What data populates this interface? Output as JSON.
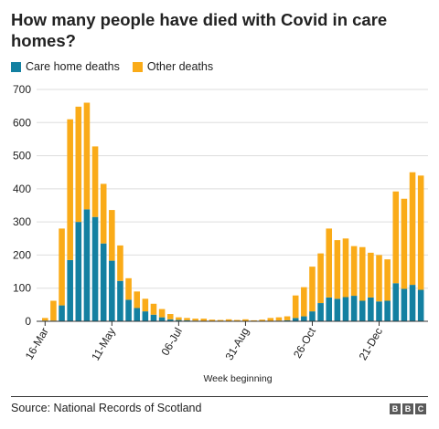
{
  "title": "How many people have died with Covid in care homes?",
  "legend": {
    "care_home_label": "Care home deaths",
    "other_label": "Other deaths"
  },
  "colors": {
    "care_home": "#1380A1",
    "other": "#FAAB18",
    "grid": "#dddddd",
    "axis": "#333333"
  },
  "source": "Source: National Records of Scotland",
  "logo": [
    "B",
    "B",
    "C"
  ],
  "chart_data": {
    "type": "bar",
    "stacked": true,
    "xlabel": "Week beginning",
    "ylabel": "",
    "ylim": [
      0,
      700
    ],
    "yticks": [
      0,
      100,
      200,
      300,
      400,
      500,
      600,
      700
    ],
    "grid": true,
    "legend_placement": "top-left",
    "x_tick_labels": [
      {
        "index": 0,
        "label": "16-Mar"
      },
      {
        "index": 8,
        "label": "11-May"
      },
      {
        "index": 16,
        "label": "06-Jul"
      },
      {
        "index": 24,
        "label": "31-Aug"
      },
      {
        "index": 32,
        "label": "26-Oct"
      },
      {
        "index": 40,
        "label": "21-Dec"
      }
    ],
    "series": [
      {
        "name": "Care home deaths",
        "values": [
          2,
          2,
          48,
          185,
          300,
          338,
          315,
          235,
          183,
          122,
          65,
          40,
          30,
          20,
          12,
          6,
          4,
          3,
          2,
          1,
          1,
          0,
          0,
          0,
          0,
          0,
          0,
          1,
          2,
          3,
          10,
          15,
          30,
          55,
          72,
          68,
          73,
          77,
          62,
          72,
          60,
          62,
          115,
          98,
          110,
          95
        ]
      },
      {
        "name": "Other deaths",
        "values": [
          8,
          60,
          232,
          425,
          348,
          322,
          213,
          180,
          153,
          107,
          65,
          50,
          38,
          33,
          25,
          16,
          8,
          7,
          6,
          7,
          4,
          4,
          6,
          4,
          6,
          3,
          5,
          9,
          10,
          12,
          68,
          88,
          135,
          150,
          208,
          177,
          177,
          150,
          162,
          135,
          140,
          125,
          277,
          272,
          340,
          345
        ]
      }
    ]
  }
}
